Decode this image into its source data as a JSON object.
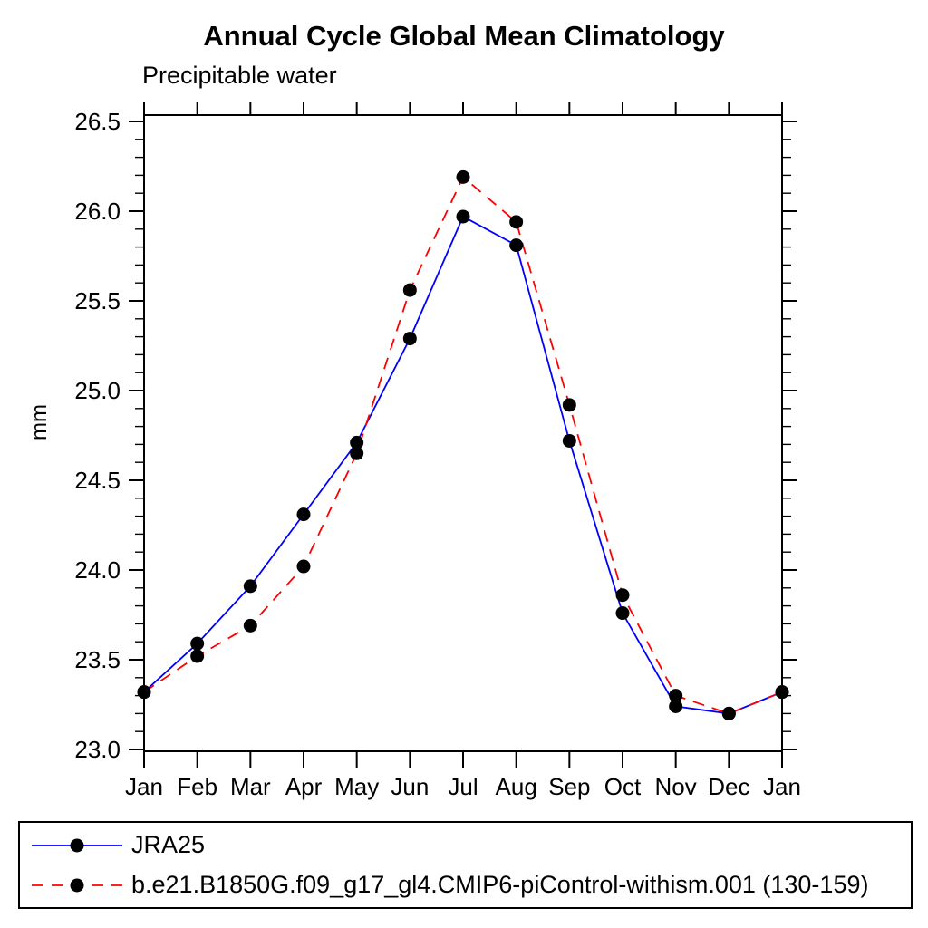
{
  "chart_data": {
    "type": "line",
    "title": "Annual Cycle Global Mean Climatology",
    "subtitle": "Precipitable water",
    "ylabel": "mm",
    "categories": [
      "Jan",
      "Feb",
      "Mar",
      "Apr",
      "May",
      "Jun",
      "Jul",
      "Aug",
      "Sep",
      "Oct",
      "Nov",
      "Dec",
      "Jan"
    ],
    "ylim": [
      23.0,
      26.54
    ],
    "yticks": [
      23.0,
      23.5,
      24.0,
      24.5,
      25.0,
      25.5,
      26.0,
      26.5
    ],
    "ytick_labels": [
      "23.0",
      "23.5",
      "24.0",
      "24.5",
      "25.0",
      "25.5",
      "26.0",
      "26.5"
    ],
    "ytick_minor_step": 0.1,
    "grid": false,
    "legend_position": "bottom-box",
    "marker": "filled-circle",
    "marker_color": "#000000",
    "axis_color": "#000000",
    "background_color": "#ffffff",
    "series": [
      {
        "name": "JRA25",
        "color": "#0000ff",
        "line_style": "solid",
        "values": [
          23.32,
          23.59,
          23.91,
          24.31,
          24.71,
          25.29,
          25.97,
          25.81,
          24.72,
          23.76,
          23.24,
          23.2,
          23.32
        ]
      },
      {
        "name": "b.e21.B1850G.f09_g17_gl4.CMIP6-piControl-withism.001 (130-159)",
        "color": "#ff0000",
        "line_style": "dashed",
        "values": [
          23.32,
          23.52,
          23.69,
          24.02,
          24.65,
          25.56,
          26.19,
          25.94,
          24.92,
          23.86,
          23.3,
          23.2,
          23.32
        ]
      }
    ]
  }
}
